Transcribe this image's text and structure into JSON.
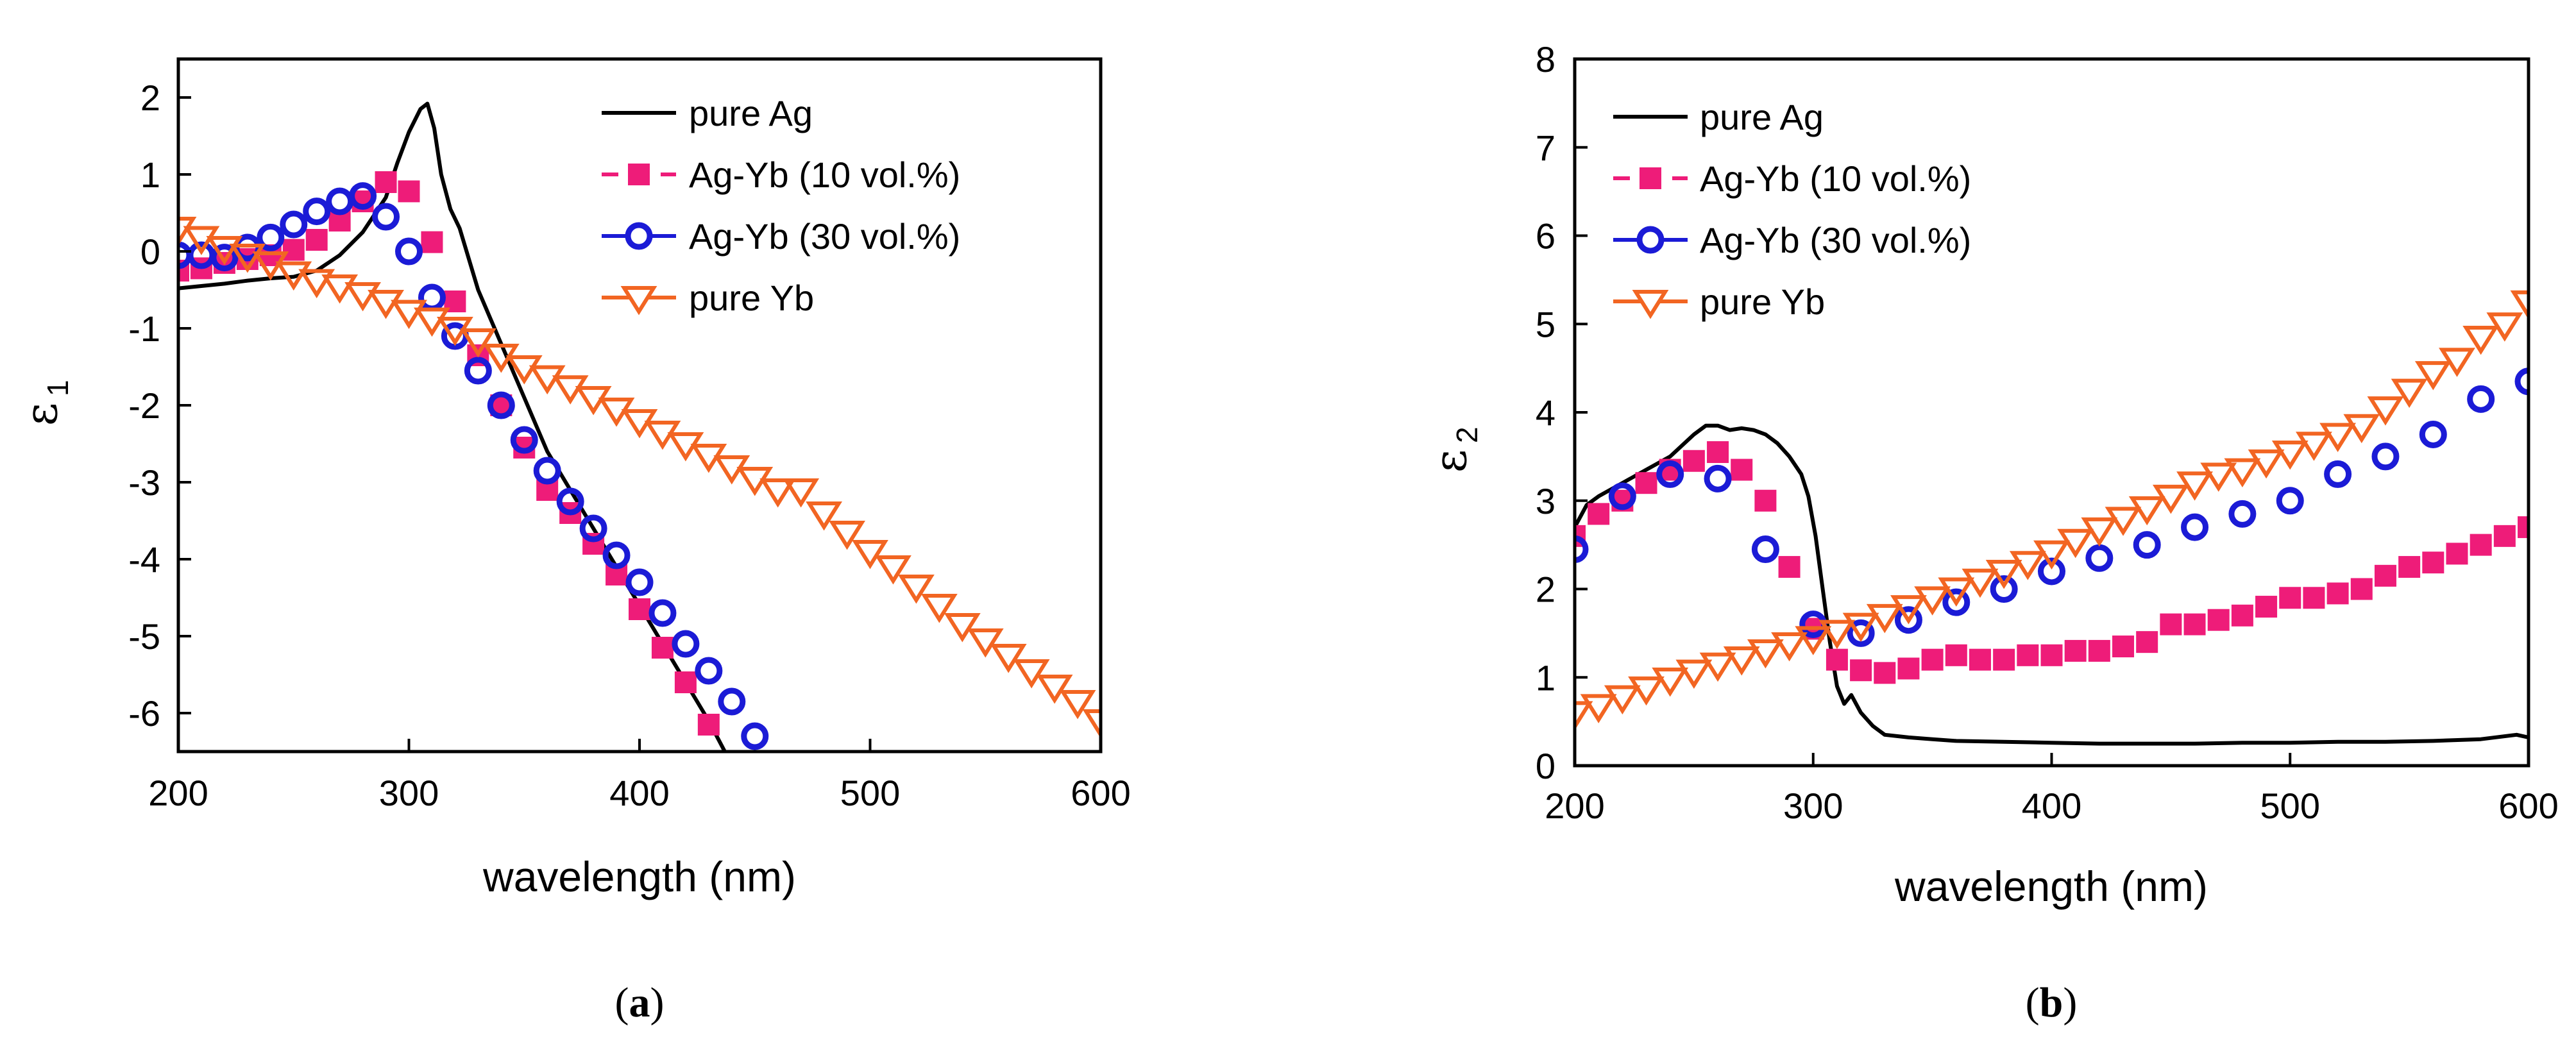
{
  "colors": {
    "pure_ag": "#000000",
    "ag_yb_10": "#ee1c79",
    "ag_yb_30": "#1b1bd6",
    "pure_yb": "#f26522"
  },
  "chart_data": [
    {
      "type": "line",
      "panel": "a",
      "panel_label": {
        "open": "(",
        "letter": "a",
        "close": ")"
      },
      "title": "",
      "xlabel": "wavelength (nm)",
      "ylabel": "ε",
      "ylabel_sub": "1",
      "xlim": [
        200,
        600
      ],
      "ylim": [
        -6.5,
        2.5
      ],
      "xticks": [
        200,
        300,
        400,
        500,
        600
      ],
      "yticks": [
        2,
        1,
        0,
        -1,
        -2,
        -3,
        -4,
        -5,
        -6
      ],
      "legend_position": "top-right",
      "series": [
        {
          "name": "pure Ag",
          "style": "line",
          "color_key": "pure_ag",
          "x": [
            200,
            210,
            220,
            230,
            240,
            250,
            260,
            270,
            280,
            290,
            295,
            300,
            305,
            308,
            311,
            314,
            318,
            322,
            326,
            330,
            340,
            350,
            360,
            370,
            380,
            390,
            400,
            410,
            420,
            430,
            437
          ],
          "y": [
            -0.48,
            -0.45,
            -0.42,
            -0.38,
            -0.35,
            -0.33,
            -0.25,
            -0.05,
            0.25,
            0.7,
            1.15,
            1.55,
            1.85,
            1.92,
            1.6,
            1.0,
            0.55,
            0.3,
            -0.1,
            -0.5,
            -1.2,
            -1.9,
            -2.6,
            -3.1,
            -3.6,
            -4.1,
            -4.6,
            -5.1,
            -5.6,
            -6.1,
            -6.5
          ]
        },
        {
          "name": "Ag-Yb (10 vol.%)",
          "style": "square",
          "color_key": "ag_yb_10",
          "x": [
            200,
            210,
            220,
            230,
            240,
            250,
            260,
            270,
            280,
            290,
            300,
            310,
            320,
            330,
            340,
            350,
            360,
            370,
            380,
            390,
            400,
            410,
            420,
            430
          ],
          "y": [
            -0.25,
            -0.22,
            -0.15,
            -0.1,
            -0.05,
            0.02,
            0.15,
            0.4,
            0.65,
            0.9,
            0.78,
            0.12,
            -0.65,
            -1.35,
            -2.0,
            -2.55,
            -3.1,
            -3.4,
            -3.8,
            -4.2,
            -4.65,
            -5.15,
            -5.6,
            -6.15
          ]
        },
        {
          "name": "Ag-Yb (30 vol.%)",
          "style": "circle",
          "color_key": "ag_yb_30",
          "x": [
            200,
            210,
            220,
            230,
            240,
            250,
            260,
            270,
            280,
            290,
            300,
            310,
            320,
            330,
            340,
            350,
            360,
            370,
            380,
            390,
            400,
            410,
            420,
            430,
            440,
            450
          ],
          "y": [
            -0.05,
            -0.05,
            -0.08,
            0.05,
            0.18,
            0.35,
            0.52,
            0.65,
            0.72,
            0.45,
            0.0,
            -0.6,
            -1.1,
            -1.55,
            -2.0,
            -2.45,
            -2.85,
            -3.25,
            -3.6,
            -3.95,
            -4.3,
            -4.7,
            -5.1,
            -5.45,
            -5.85,
            -6.3
          ]
        },
        {
          "name": "pure Yb",
          "style": "triangle-down",
          "color_key": "pure_yb",
          "x": [
            200,
            210,
            220,
            230,
            240,
            250,
            260,
            270,
            280,
            290,
            300,
            310,
            320,
            330,
            340,
            350,
            360,
            370,
            380,
            390,
            400,
            410,
            420,
            430,
            440,
            450,
            460,
            470,
            480,
            490,
            500,
            510,
            520,
            530,
            540,
            550,
            560,
            570,
            580,
            590,
            600
          ],
          "y": [
            0.3,
            0.18,
            0.05,
            -0.05,
            -0.15,
            -0.28,
            -0.38,
            -0.45,
            -0.55,
            -0.65,
            -0.78,
            -0.88,
            -1.0,
            -1.15,
            -1.35,
            -1.5,
            -1.63,
            -1.76,
            -1.9,
            -2.05,
            -2.2,
            -2.35,
            -2.5,
            -2.65,
            -2.8,
            -2.95,
            -3.1,
            -3.1,
            -3.4,
            -3.65,
            -3.9,
            -4.1,
            -4.35,
            -4.6,
            -4.85,
            -5.05,
            -5.25,
            -5.45,
            -5.65,
            -5.85,
            -6.1
          ]
        }
      ]
    },
    {
      "type": "line",
      "panel": "b",
      "panel_label": {
        "open": "(",
        "letter": "b",
        "close": ")"
      },
      "title": "",
      "xlabel": "wavelength (nm)",
      "ylabel": "ε",
      "ylabel_sub": "2",
      "xlim": [
        200,
        600
      ],
      "ylim": [
        0,
        8
      ],
      "xticks": [
        200,
        300,
        400,
        500,
        600
      ],
      "yticks": [
        0,
        1,
        2,
        3,
        4,
        5,
        6,
        7,
        8
      ],
      "legend_position": "top-left",
      "series": [
        {
          "name": "pure Ag",
          "style": "line",
          "color_key": "pure_ag",
          "x": [
            200,
            205,
            210,
            220,
            230,
            240,
            250,
            255,
            260,
            265,
            270,
            275,
            280,
            285,
            290,
            295,
            298,
            301,
            304,
            307,
            310,
            313,
            316,
            320,
            325,
            330,
            340,
            350,
            360,
            380,
            400,
            420,
            440,
            460,
            480,
            500,
            520,
            540,
            560,
            580,
            595,
            600
          ],
          "y": [
            2.7,
            2.95,
            3.05,
            3.2,
            3.35,
            3.5,
            3.75,
            3.85,
            3.85,
            3.8,
            3.82,
            3.8,
            3.75,
            3.65,
            3.5,
            3.3,
            3.05,
            2.6,
            2.0,
            1.4,
            0.9,
            0.7,
            0.8,
            0.6,
            0.45,
            0.35,
            0.32,
            0.3,
            0.28,
            0.27,
            0.26,
            0.25,
            0.25,
            0.25,
            0.26,
            0.26,
            0.27,
            0.27,
            0.28,
            0.3,
            0.35,
            0.32
          ]
        },
        {
          "name": "Ag-Yb (10 vol.%)",
          "style": "square",
          "color_key": "ag_yb_10",
          "x": [
            200,
            210,
            220,
            230,
            240,
            250,
            260,
            270,
            280,
            290,
            300,
            310,
            320,
            330,
            340,
            350,
            360,
            370,
            380,
            390,
            400,
            410,
            420,
            430,
            440,
            450,
            460,
            470,
            480,
            490,
            500,
            510,
            520,
            530,
            540,
            550,
            560,
            570,
            580,
            590,
            600
          ],
          "y": [
            2.6,
            2.85,
            3.0,
            3.2,
            3.35,
            3.45,
            3.55,
            3.35,
            3.0,
            2.25,
            1.55,
            1.2,
            1.08,
            1.05,
            1.1,
            1.2,
            1.25,
            1.2,
            1.2,
            1.25,
            1.25,
            1.3,
            1.3,
            1.35,
            1.4,
            1.6,
            1.6,
            1.65,
            1.7,
            1.8,
            1.9,
            1.9,
            1.95,
            2.0,
            2.15,
            2.25,
            2.3,
            2.4,
            2.5,
            2.6,
            2.7
          ]
        },
        {
          "name": "Ag-Yb (30 vol.%)",
          "style": "circle",
          "color_key": "ag_yb_30",
          "x": [
            200,
            220,
            240,
            260,
            280,
            300,
            320,
            340,
            360,
            380,
            400,
            420,
            440,
            460,
            480,
            500,
            520,
            540,
            560,
            580,
            600
          ],
          "y": [
            2.45,
            3.05,
            3.3,
            3.25,
            2.45,
            1.6,
            1.5,
            1.65,
            1.85,
            2.0,
            2.2,
            2.35,
            2.5,
            2.7,
            2.85,
            3.0,
            3.3,
            3.5,
            3.75,
            4.15,
            4.35
          ]
        },
        {
          "name": "pure Yb",
          "style": "triangle-down",
          "color_key": "pure_yb",
          "x": [
            200,
            210,
            220,
            230,
            240,
            250,
            260,
            270,
            280,
            290,
            300,
            310,
            320,
            330,
            340,
            350,
            360,
            370,
            380,
            390,
            400,
            410,
            420,
            430,
            440,
            450,
            460,
            470,
            480,
            490,
            500,
            510,
            520,
            530,
            540,
            550,
            560,
            570,
            580,
            590,
            600
          ],
          "y": [
            0.6,
            0.68,
            0.78,
            0.88,
            0.98,
            1.07,
            1.15,
            1.22,
            1.3,
            1.38,
            1.45,
            1.52,
            1.6,
            1.7,
            1.8,
            1.9,
            2.0,
            2.1,
            2.2,
            2.3,
            2.42,
            2.55,
            2.68,
            2.8,
            2.92,
            3.05,
            3.2,
            3.3,
            3.35,
            3.45,
            3.55,
            3.65,
            3.75,
            3.85,
            4.05,
            4.25,
            4.45,
            4.6,
            4.85,
            5.0,
            5.25
          ]
        }
      ]
    }
  ]
}
